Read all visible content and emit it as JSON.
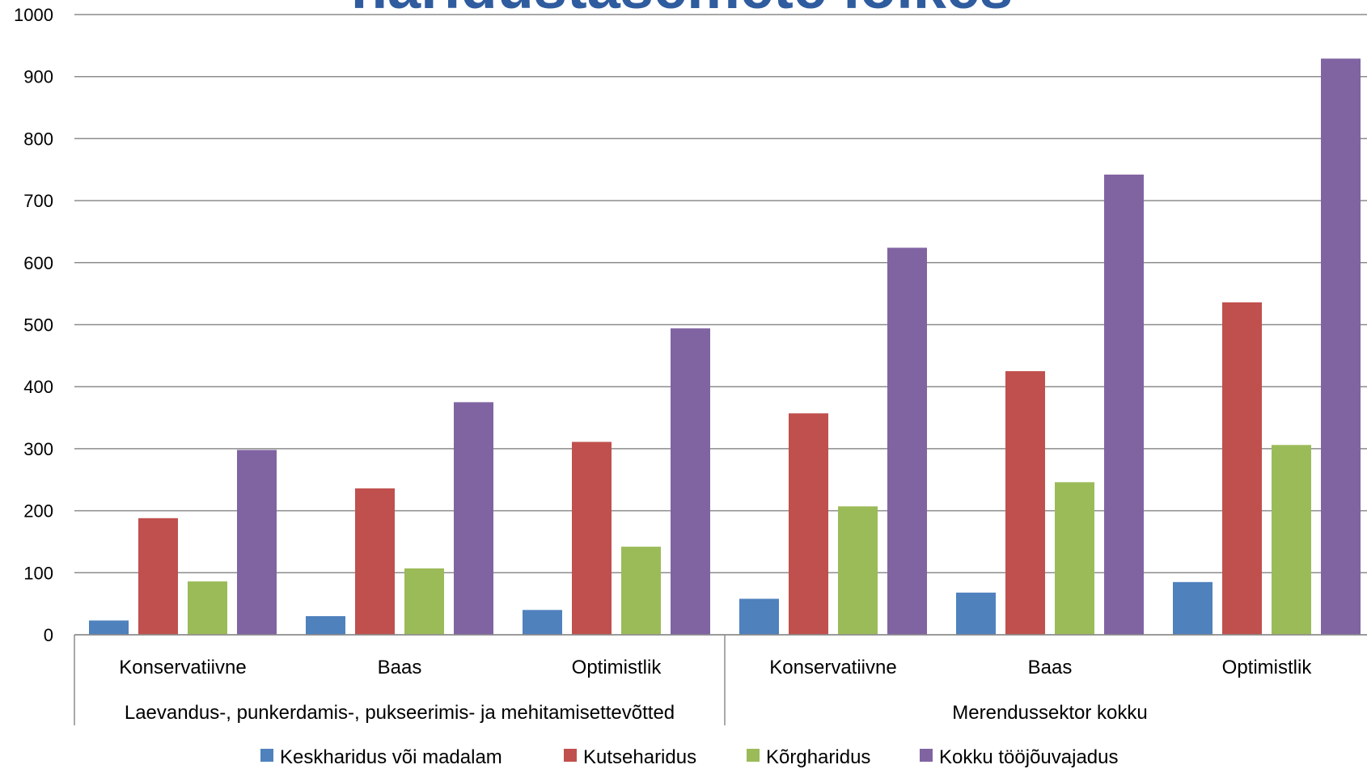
{
  "chart_data": {
    "type": "bar",
    "title": "haridustasemete lõikes",
    "ylim": [
      0,
      1000
    ],
    "yticks": [
      "0",
      "100",
      "200",
      "300",
      "400",
      "500",
      "600",
      "700",
      "800",
      "900",
      "1000"
    ],
    "grid": true,
    "legend_position": "bottom",
    "groups": [
      {
        "label": "Laevandus-, punkerdamis-, pukseerimis- ja mehitamisettevõtted",
        "categories": [
          "Konservatiivne",
          "Baas",
          "Optimistlik"
        ]
      },
      {
        "label": "Merendussektor kokku",
        "categories": [
          "Konservatiivne",
          "Baas",
          "Optimistlik"
        ]
      }
    ],
    "series": [
      {
        "name": "Keskharidus või madalam",
        "color": "#4f81bd",
        "values": [
          23,
          30,
          40,
          58,
          68,
          85
        ]
      },
      {
        "name": "Kutseharidus",
        "color": "#c0504d",
        "values": [
          188,
          236,
          311,
          357,
          425,
          536
        ]
      },
      {
        "name": "Kõrgharidus",
        "color": "#9bbb59",
        "values": [
          86,
          107,
          142,
          207,
          246,
          306
        ]
      },
      {
        "name": "Kokku tööjõuvajadus",
        "color": "#8064a2",
        "values": [
          298,
          375,
          494,
          624,
          742,
          929
        ]
      }
    ]
  }
}
